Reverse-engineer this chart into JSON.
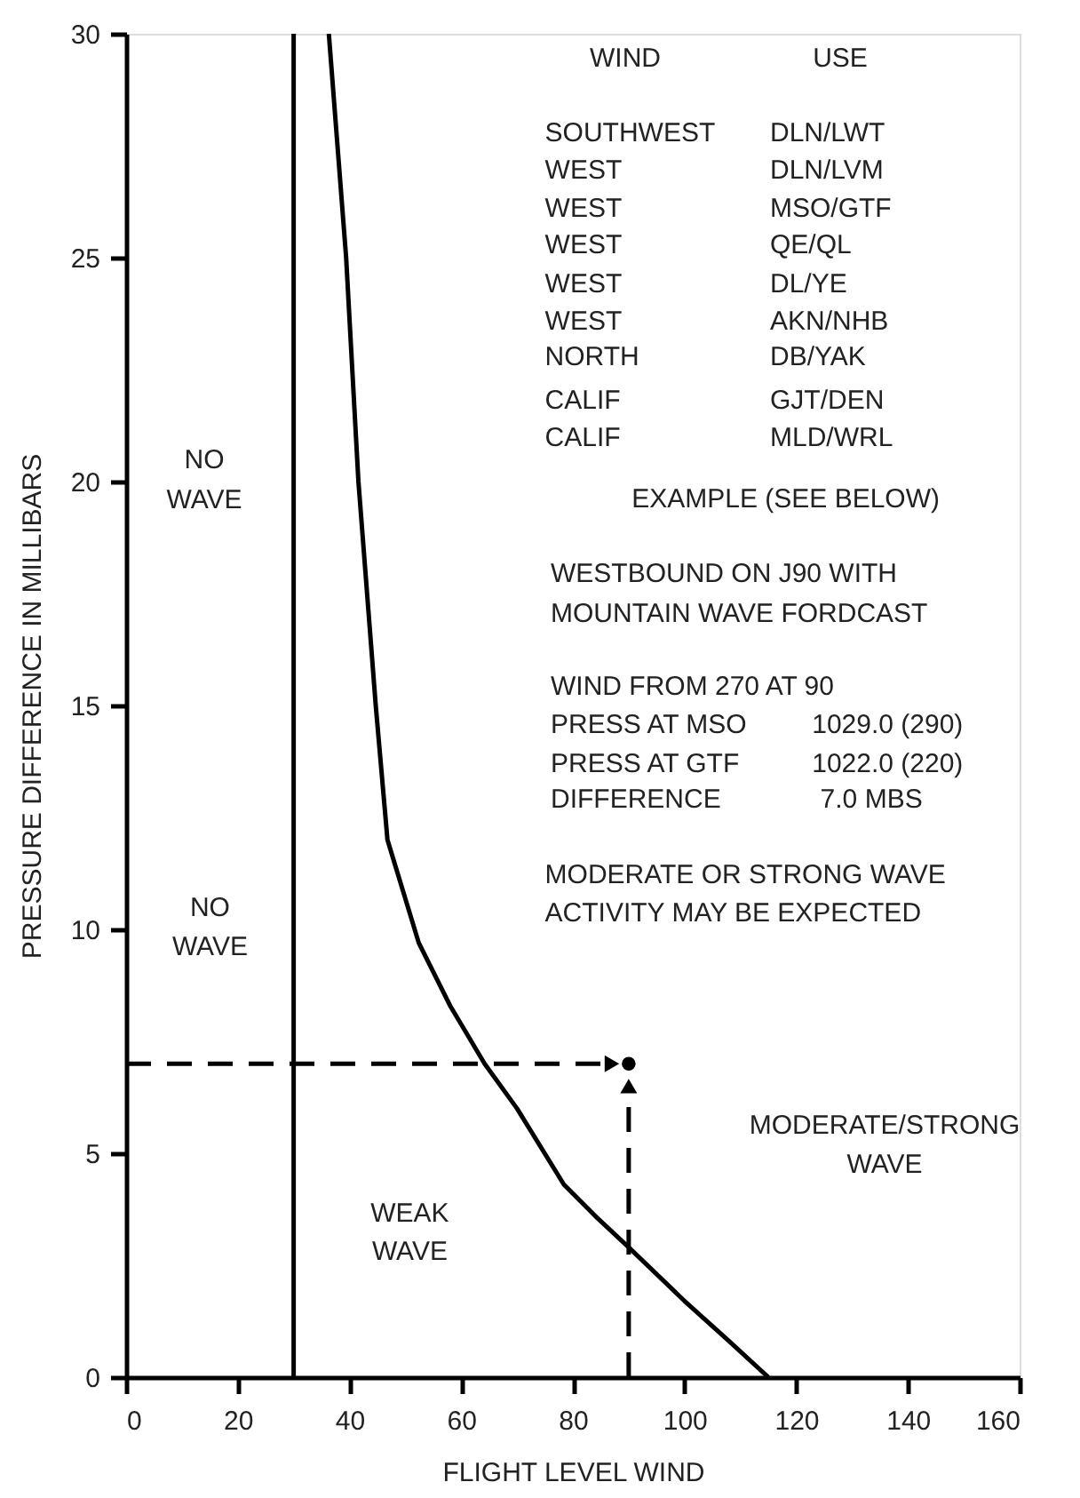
{
  "chart_data": {
    "type": "line",
    "xlabel": "FLIGHT LEVEL WIND",
    "ylabel": "PRESSURE DIFFERENCE IN MILLIBARS",
    "xlim": [
      0,
      160
    ],
    "xticks": [
      0,
      20,
      40,
      60,
      80,
      100,
      120,
      140,
      160
    ],
    "ylim": [
      0,
      30
    ],
    "yticks": [
      0,
      5,
      10,
      15,
      20,
      25,
      30
    ],
    "grid": false,
    "series": [
      {
        "color": "#000000",
        "line_style": "solid",
        "x": [
          36.3,
          39.4,
          41.6,
          44.7,
          46.8,
          52.4,
          58,
          64.2,
          70,
          78.4,
          84,
          90,
          100,
          108,
          115
        ],
        "values": [
          30,
          25,
          20,
          15,
          12,
          9.7,
          8.3,
          7,
          6,
          4.3,
          3.6,
          2.9,
          1.7,
          0.8,
          0
        ]
      },
      {
        "color": "#000000",
        "line_style": "dashed",
        "x": [
          0,
          87
        ],
        "values": [
          7,
          7
        ]
      },
      {
        "color": "#000000",
        "line_style": "dashed",
        "x": [
          90,
          90
        ],
        "values": [
          0,
          6.5
        ]
      },
      {
        "type": "scatter",
        "color": "#000000",
        "marker": "circle",
        "x": [
          90
        ],
        "values": [
          7
        ]
      }
    ],
    "ref_lines": [
      {
        "axis": "x",
        "value": 30,
        "color": "#000000",
        "line_style": "solid"
      }
    ],
    "annotations": [
      "WIND",
      "USE",
      "SOUTHWEST",
      "DLN/LWT",
      "WEST",
      "DLN/LVM",
      "WEST",
      "MSO/GTF",
      "WEST",
      "QE/QL",
      "WEST",
      "DL/YE",
      "WEST",
      "AKN/NHB",
      "NORTH",
      "DB/YAK",
      "CALIF",
      "GJT/DEN",
      "CALIF",
      "MLD/WRL",
      "EXAMPLE (SEE BELOW)",
      "WESTBOUND ON J90 WITH",
      "MOUNTAIN WAVE FORDCAST",
      "WIND FROM 270 AT 90",
      "PRESS AT MSO",
      "1029.0 (290)",
      "PRESS AT GTF",
      "1022.0 (220)",
      "DIFFERENCE",
      "7.0 MBS",
      "MODERATE OR STRONG WAVE",
      "ACTIVITY MAY BE EXPECTED",
      "NO",
      "WAVE",
      "NO",
      "WAVE",
      "MODERATE/STRONG",
      "WAVE",
      "WEAK",
      "WAVE"
    ]
  }
}
